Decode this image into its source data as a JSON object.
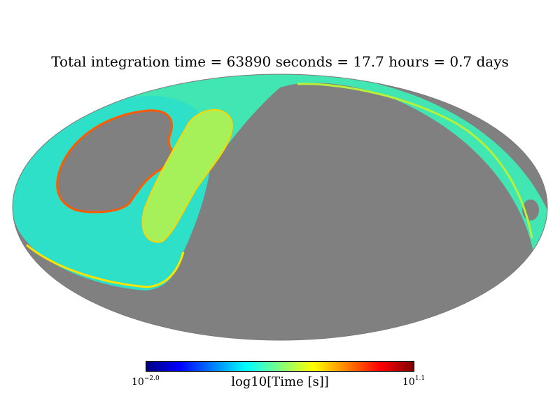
{
  "title": "Total integration time = 63890 seconds = 17.7 hours = 0.7 days",
  "map": {
    "projection": "mollweide",
    "background_color": "#808080",
    "colormap": "jet"
  },
  "colorbar": {
    "label": "log10[Time [s]]",
    "min_base": "10",
    "min_exp": "−2.0",
    "max_base": "10",
    "max_exp": "1.1",
    "colors": [
      "#00007f",
      "#0000ff",
      "#007fff",
      "#00ffff",
      "#7fff7f",
      "#ffff00",
      "#ff7f00",
      "#ff0000",
      "#7f0000"
    ]
  }
}
